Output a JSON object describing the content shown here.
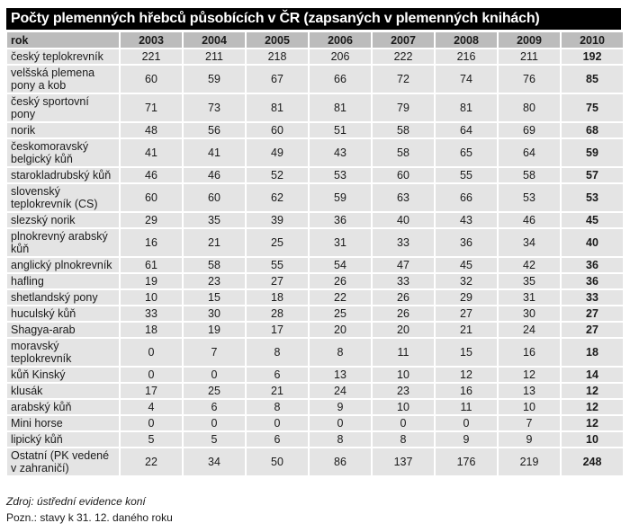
{
  "title": "Počty plemenných hřebců působících v ČR (zapsaných v plemenných knihách)",
  "table": {
    "header_label": "rok",
    "years": [
      "2003",
      "2004",
      "2005",
      "2006",
      "2007",
      "2008",
      "2009",
      "2010"
    ],
    "rows": [
      {
        "label": "český teplokrevník",
        "values": [
          "221",
          "211",
          "218",
          "206",
          "222",
          "216",
          "211",
          "192"
        ]
      },
      {
        "label": "velšská plemena\npony a kob",
        "values": [
          "60",
          "59",
          "67",
          "66",
          "72",
          "74",
          "76",
          "85"
        ]
      },
      {
        "label": "český sportovní\npony",
        "values": [
          "71",
          "73",
          "81",
          "81",
          "79",
          "81",
          "80",
          "75"
        ]
      },
      {
        "label": "norik",
        "values": [
          "48",
          "56",
          "60",
          "51",
          "58",
          "64",
          "69",
          "68"
        ]
      },
      {
        "label": "českomoravský\nbelgický kůň",
        "values": [
          "41",
          "41",
          "49",
          "43",
          "58",
          "65",
          "64",
          "59"
        ]
      },
      {
        "label": "starokladrubský kůň",
        "values": [
          "46",
          "46",
          "52",
          "53",
          "60",
          "55",
          "58",
          "57"
        ]
      },
      {
        "label": "slovenský\nteplokrevník (CS)",
        "values": [
          "60",
          "60",
          "62",
          "59",
          "63",
          "66",
          "53",
          "53"
        ]
      },
      {
        "label": "slezský norik",
        "values": [
          "29",
          "35",
          "39",
          "36",
          "40",
          "43",
          "46",
          "45"
        ]
      },
      {
        "label": "plnokrevný arabský\nkůň",
        "values": [
          "16",
          "21",
          "25",
          "31",
          "33",
          "36",
          "34",
          "40"
        ]
      },
      {
        "label": "anglický plnokrevník",
        "values": [
          "61",
          "58",
          "55",
          "54",
          "47",
          "45",
          "42",
          "36"
        ]
      },
      {
        "label": "hafling",
        "values": [
          "19",
          "23",
          "27",
          "26",
          "33",
          "32",
          "35",
          "36"
        ]
      },
      {
        "label": "shetlandský pony",
        "values": [
          "10",
          "15",
          "18",
          "22",
          "26",
          "29",
          "31",
          "33"
        ]
      },
      {
        "label": "huculský kůň",
        "values": [
          "33",
          "30",
          "28",
          "25",
          "26",
          "27",
          "30",
          "27"
        ]
      },
      {
        "label": "Shagya-arab",
        "values": [
          "18",
          "19",
          "17",
          "20",
          "20",
          "21",
          "24",
          "27"
        ]
      },
      {
        "label": "moravský\nteplokrevník",
        "values": [
          "0",
          "7",
          "8",
          "8",
          "11",
          "15",
          "16",
          "18"
        ]
      },
      {
        "label": "kůň Kinský",
        "values": [
          "0",
          "0",
          "6",
          "13",
          "10",
          "12",
          "12",
          "14"
        ]
      },
      {
        "label": "klusák",
        "values": [
          "17",
          "25",
          "21",
          "24",
          "23",
          "16",
          "13",
          "12"
        ]
      },
      {
        "label": "arabský kůň",
        "values": [
          "4",
          "6",
          "8",
          "9",
          "10",
          "11",
          "10",
          "12"
        ]
      },
      {
        "label": "Mini horse",
        "values": [
          "0",
          "0",
          "0",
          "0",
          "0",
          "0",
          "7",
          "12"
        ]
      },
      {
        "label": "lipický kůň",
        "values": [
          "5",
          "5",
          "6",
          "8",
          "8",
          "9",
          "9",
          "10"
        ]
      },
      {
        "label": "Ostatní (PK vedené\nv zahraničí)",
        "values": [
          "22",
          "34",
          "50",
          "86",
          "137",
          "176",
          "219",
          "248"
        ]
      }
    ]
  },
  "footer": {
    "source": "Zdroj: ústřední evidence koní",
    "note": "Pozn.: stavy k 31. 12. daného roku"
  }
}
